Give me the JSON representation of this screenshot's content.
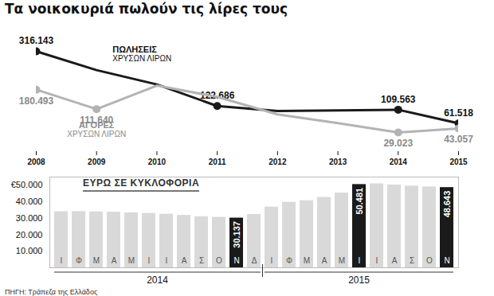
{
  "chart_data": [
    {
      "type": "line",
      "title": "Τα νοικοκυριά πωλούν τις λίρες τους",
      "x": [
        2008,
        2009,
        2010,
        2011,
        2012,
        2013,
        2014,
        2015
      ],
      "xlim": [
        2008,
        2015
      ],
      "xticks": [
        2008,
        2009,
        2010,
        2011,
        2012,
        2013,
        2014,
        2015
      ],
      "tick_labels": "x",
      "data_labels": true,
      "series": [
        {
          "name": "ΠΩΛΗΣΕΙΣ ΧΡΥΣΩΝ ΛΙΡΩΝ",
          "color": "#1a1a1a",
          "marker": "circle",
          "values": [
            316143,
            249700,
            198900,
            122686,
            105100,
            107000,
            109563,
            61518
          ],
          "value_labels": [
            "316.143",
            null,
            null,
            "122.686",
            null,
            null,
            "109.563",
            "61.518"
          ]
        },
        {
          "name": "ΑΓΟΡΕΣ ΧΡΥΣΩΝ ΛΙΡΩΝ",
          "color": "#b3b3b3",
          "marker": "circle",
          "values": [
            180493,
            111640,
            195000,
            155000,
            93000,
            62000,
            29023,
            43057
          ],
          "value_labels": [
            "180.493",
            "111.640",
            null,
            null,
            null,
            null,
            "29.023",
            "43.057"
          ]
        }
      ]
    },
    {
      "type": "bar",
      "title": "ΕΥΡΩ ΣΕ ΚΥΚΛΟΦΟΡΙΑ",
      "categories": [
        "Ι",
        "Φ",
        "Μ",
        "Α",
        "Μ",
        "Ι",
        "Ι",
        "Α",
        "Σ",
        "Ο",
        "Ν",
        "Δ",
        "Ι",
        "Φ",
        "Μ",
        "Α",
        "Μ",
        "Ι",
        "Ι",
        "Α",
        "Σ",
        "Ο",
        "Ν"
      ],
      "years": [
        "2014",
        "2014",
        "2014",
        "2014",
        "2014",
        "2014",
        "2014",
        "2014",
        "2014",
        "2014",
        "2014",
        "2014",
        "2015",
        "2015",
        "2015",
        "2015",
        "2015",
        "2015",
        "2015",
        "2015",
        "2015",
        "2015",
        "2015"
      ],
      "values": [
        34000,
        34100,
        33900,
        33700,
        33300,
        33000,
        32500,
        31800,
        31000,
        30600,
        30137,
        32300,
        36800,
        39700,
        40700,
        42700,
        45300,
        50481,
        50900,
        50200,
        49500,
        49000,
        48643
      ],
      "value_labels": [
        null,
        null,
        null,
        null,
        null,
        null,
        null,
        null,
        null,
        null,
        "30.137",
        null,
        null,
        null,
        null,
        null,
        null,
        "50.481",
        null,
        null,
        null,
        null,
        "48.643"
      ],
      "colors": [
        "#d9d9d9",
        "#d9d9d9",
        "#d9d9d9",
        "#d9d9d9",
        "#d9d9d9",
        "#d9d9d9",
        "#d9d9d9",
        "#d9d9d9",
        "#d9d9d9",
        "#d9d9d9",
        "#1a1a1a",
        "#d9d9d9",
        "#d9d9d9",
        "#d9d9d9",
        "#d9d9d9",
        "#d9d9d9",
        "#d9d9d9",
        "#1a1a1a",
        "#d9d9d9",
        "#d9d9d9",
        "#d9d9d9",
        "#d9d9d9",
        "#1a1a1a"
      ],
      "data_labels": true,
      "grid": false,
      "ylim": [
        0,
        55000
      ],
      "yticks": [
        {
          "value": 10000,
          "label": "10.000"
        },
        {
          "value": 20000,
          "label": "20.000"
        },
        {
          "value": 30000,
          "label": "30.000"
        },
        {
          "value": 40000,
          "label": "40.000"
        },
        {
          "value": 50000,
          "label": "€50.000"
        }
      ],
      "caption": "ΠΗΓΗ: Τράπεζα της Ελλάδος"
    }
  ]
}
